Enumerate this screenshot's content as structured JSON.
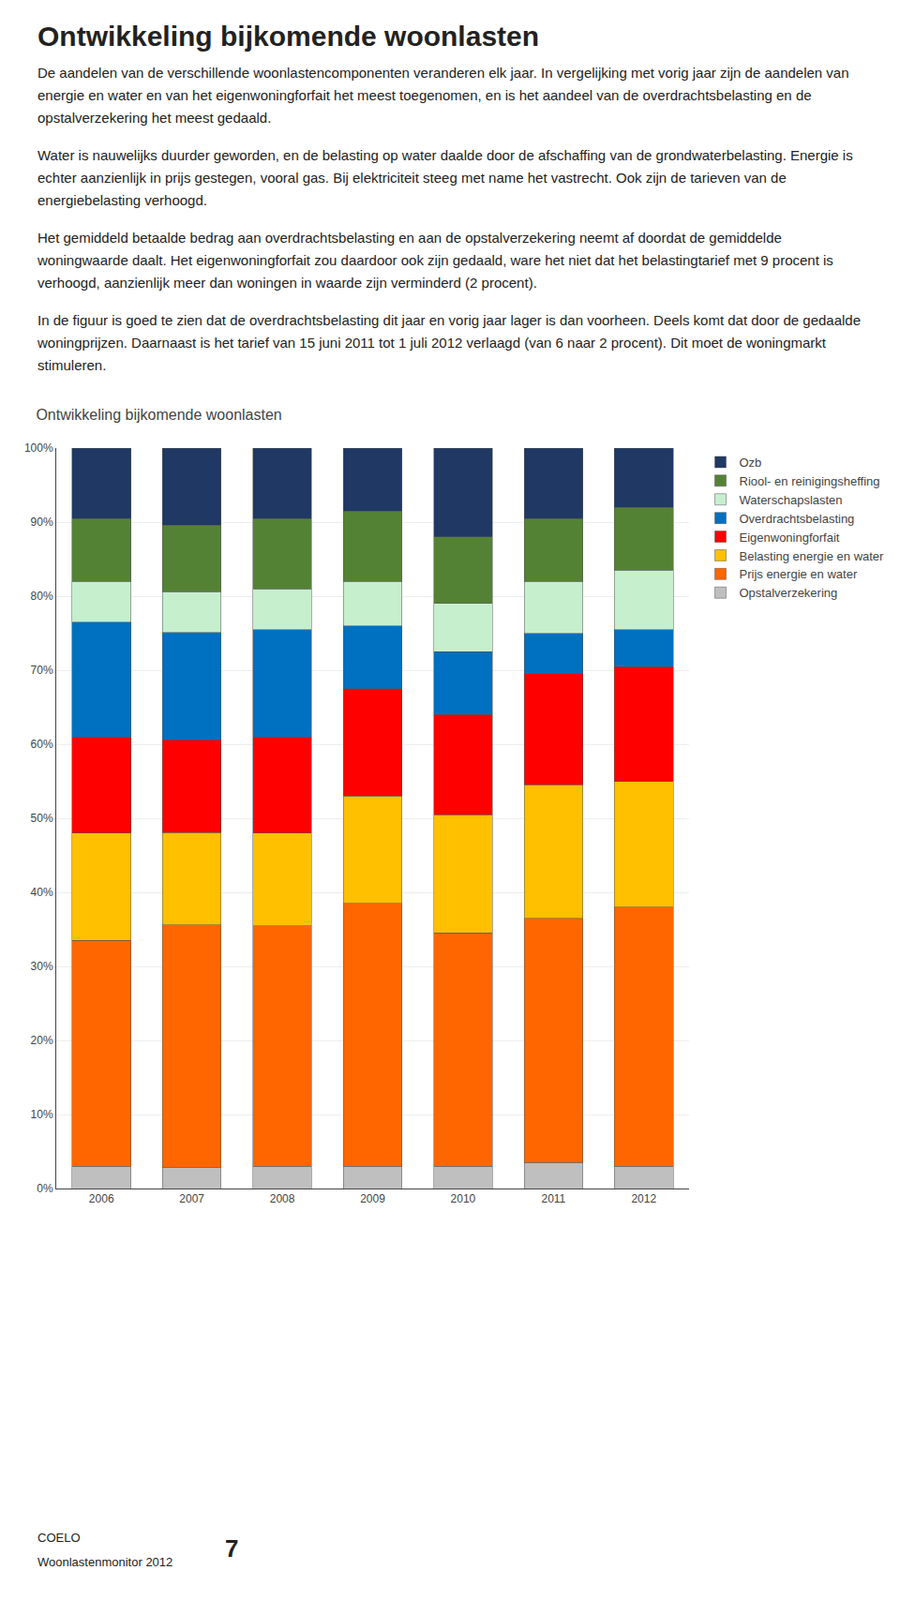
{
  "page": {
    "title": "Ontwikkeling bijkomende woonlasten",
    "paragraphs": [
      "De aandelen van de verschillende woonlastencomponenten veranderen elk jaar. In vergelijking met vorig jaar zijn de aandelen van energie en water en van het eigenwoningforfait het meest toegenomen, en is het aandeel van de overdrachtsbelasting en de opstalverzekering het meest gedaald.",
      "Water is nauwelijks duurder geworden, en de belasting op water daalde door de afschaffing van de grondwaterbelasting. Energie is echter aanzienlijk in prijs gestegen, vooral gas. Bij elektriciteit steeg met name het vastrecht. Ook zijn de tarieven van de energiebelasting verhoogd.",
      "Het gemiddeld betaalde bedrag aan overdrachtsbelasting en aan de opstalverzekering neemt af doordat de gemiddelde woningwaarde daalt. Het eigenwoningforfait zou daardoor ook zijn gedaald, ware het niet dat het belastingtarief met 9 procent is verhoogd, aanzienlijk meer dan woningen in waarde zijn verminderd (2 procent).",
      "In de figuur is goed te zien dat de overdrachtsbelasting dit jaar en vorig jaar lager is dan voorheen. Deels komt dat door de gedaalde woningprijzen. Daarnaast is het tarief van 15 juni 2011 tot 1 juli 2012 verlaagd (van 6 naar 2 procent). Dit moet de woningmarkt stimuleren."
    ],
    "footer": [
      "COELO",
      "Woonlastenmonitor 2012",
      "7"
    ]
  },
  "chart_data": {
    "type": "bar",
    "title": "Ontwikkeling bijkomende woonlasten",
    "stacked": true,
    "grid": true,
    "legend": "right",
    "categories": [
      "2006",
      "2007",
      "2008",
      "2009",
      "2010",
      "2011",
      "2012"
    ],
    "ylim": [
      0,
      100
    ],
    "yticks": [
      {
        "value": 0,
        "label": "0%"
      },
      {
        "value": 10,
        "label": "10%"
      },
      {
        "value": 20,
        "label": "20%"
      },
      {
        "value": 30,
        "label": "30%"
      },
      {
        "value": 40,
        "label": "40%"
      },
      {
        "value": 50,
        "label": "50%"
      },
      {
        "value": 60,
        "label": "60%"
      },
      {
        "value": 70,
        "label": "70%"
      },
      {
        "value": 80,
        "label": "80%"
      },
      {
        "value": 90,
        "label": "90%"
      },
      {
        "value": 100,
        "label": "100%"
      }
    ],
    "series": [
      {
        "name": "Opstalverzekering",
        "color": "#BFBFBF",
        "values": [
          3.0,
          2.8,
          3.0,
          3.0,
          3.0,
          3.5,
          3.0
        ]
      },
      {
        "name": "Prijs energie en water",
        "color": "#FF6600",
        "values": [
          30.5,
          32.8,
          32.5,
          35.5,
          31.5,
          33.0,
          35.0
        ]
      },
      {
        "name": "Belasting energie en water",
        "color": "#FFC000",
        "values": [
          14.5,
          12.5,
          12.5,
          14.5,
          16.0,
          18.0,
          17.0
        ]
      },
      {
        "name": "Eigenwoningforfait",
        "color": "#FF0000",
        "values": [
          13.0,
          12.5,
          13.0,
          14.5,
          13.5,
          15.0,
          15.5
        ]
      },
      {
        "name": "Overdrachtsbelasting",
        "color": "#0070C0",
        "values": [
          15.5,
          14.5,
          14.5,
          8.5,
          8.5,
          5.5,
          5.0
        ]
      },
      {
        "name": "Waterschapslasten",
        "color": "#C6EFCE",
        "values": [
          5.5,
          5.5,
          5.5,
          6.0,
          6.5,
          7.0,
          8.0
        ]
      },
      {
        "name": "Riool- en reinigingsheffing",
        "color": "#548235",
        "values": [
          8.5,
          9.0,
          9.5,
          9.5,
          9.0,
          8.5,
          8.5
        ]
      },
      {
        "name": "Ozb",
        "color": "#1F3864",
        "values": [
          9.5,
          10.4,
          9.5,
          8.5,
          12.0,
          9.5,
          8.0
        ]
      }
    ]
  }
}
